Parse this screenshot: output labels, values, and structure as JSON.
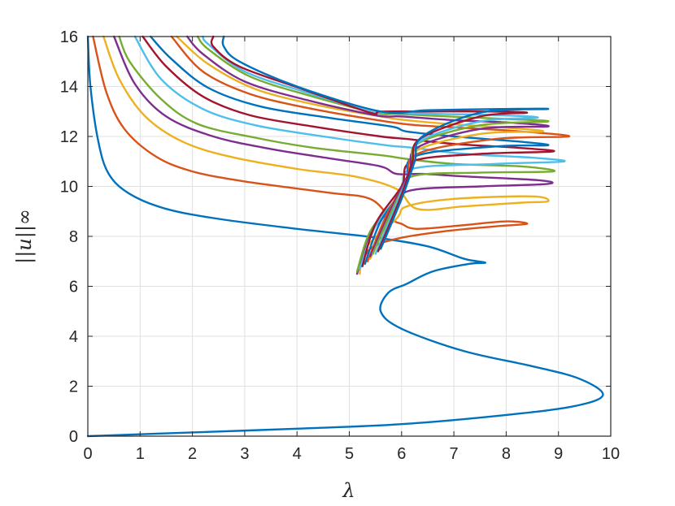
{
  "chart_data": {
    "type": "line",
    "title": "",
    "xlabel": "λ",
    "ylabel": "||u||∞",
    "xlim": [
      0,
      10
    ],
    "ylim": [
      0,
      16
    ],
    "xticks": [
      0,
      1,
      2,
      3,
      4,
      5,
      6,
      7,
      8,
      9,
      10
    ],
    "yticks": [
      0,
      2,
      4,
      6,
      8,
      10,
      12,
      14,
      16
    ],
    "grid": true,
    "legend": "none",
    "series": [
      {
        "color": "#0072BD",
        "points": [
          [
            0,
            0
          ],
          [
            2,
            0.15
          ],
          [
            4,
            0.3
          ],
          [
            6,
            0.48
          ],
          [
            8,
            0.85
          ],
          [
            9.3,
            1.2
          ],
          [
            9.85,
            1.65
          ],
          [
            9.4,
            2.3
          ],
          [
            8.5,
            2.8
          ],
          [
            7.2,
            3.4
          ],
          [
            6,
            4.3
          ],
          [
            5.6,
            5.0
          ],
          [
            5.75,
            5.75
          ],
          [
            6.1,
            6.1
          ],
          [
            6.6,
            6.6
          ],
          [
            7.3,
            6.9
          ],
          [
            7.6,
            6.95
          ],
          [
            7.2,
            7.1
          ],
          [
            6.5,
            7.6
          ],
          [
            5.5,
            7.95
          ],
          [
            4,
            8.3
          ],
          [
            2.5,
            8.7
          ],
          [
            1.5,
            9.1
          ],
          [
            0.8,
            9.7
          ],
          [
            0.4,
            10.5
          ],
          [
            0.2,
            11.8
          ],
          [
            0.05,
            14
          ],
          [
            0,
            16
          ]
        ]
      },
      {
        "color": "#D95319",
        "points": [
          [
            5.2,
            6.7
          ],
          [
            5.4,
            7.5
          ],
          [
            5.9,
            7.9
          ],
          [
            6.8,
            8.2
          ],
          [
            7.8,
            8.4
          ],
          [
            8.4,
            8.5
          ],
          [
            8.0,
            8.6
          ],
          [
            7.2,
            8.45
          ],
          [
            6.3,
            8.3
          ],
          [
            6.0,
            8.5
          ],
          [
            5.8,
            8.7
          ],
          [
            5.4,
            9.5
          ],
          [
            4.6,
            9.75
          ],
          [
            3,
            10.2
          ],
          [
            2,
            10.6
          ],
          [
            1.3,
            11.2
          ],
          [
            0.7,
            12.3
          ],
          [
            0.35,
            13.8
          ],
          [
            0.1,
            16
          ]
        ]
      },
      {
        "color": "#EDB120",
        "points": [
          [
            5.2,
            6.5
          ],
          [
            5.3,
            7.5
          ],
          [
            5.9,
            8.7
          ],
          [
            6.1,
            9.2
          ],
          [
            7,
            9.5
          ],
          [
            8.5,
            9.6
          ],
          [
            8.8,
            9.4
          ],
          [
            8.3,
            9.35
          ],
          [
            7.2,
            9.2
          ],
          [
            6.3,
            9.1
          ],
          [
            5.9,
            9.9
          ],
          [
            5.1,
            10.4
          ],
          [
            4,
            10.7
          ],
          [
            2.7,
            11.2
          ],
          [
            1.8,
            11.8
          ],
          [
            1.1,
            12.8
          ],
          [
            0.6,
            14.3
          ],
          [
            0.3,
            16
          ]
        ]
      },
      {
        "color": "#7E2F8E",
        "points": [
          [
            5.15,
            6.5
          ],
          [
            5.4,
            8.1
          ],
          [
            5.9,
            9.3
          ],
          [
            6.2,
            9.85
          ],
          [
            7.5,
            10
          ],
          [
            8.8,
            10.1
          ],
          [
            8.6,
            10.25
          ],
          [
            7.2,
            10.4
          ],
          [
            6.4,
            10.5
          ],
          [
            5.9,
            10.5
          ],
          [
            5.6,
            10.8
          ],
          [
            4.7,
            11.1
          ],
          [
            3.5,
            11.5
          ],
          [
            2.4,
            12
          ],
          [
            1.5,
            12.8
          ],
          [
            0.9,
            14.1
          ],
          [
            0.5,
            16
          ]
        ]
      },
      {
        "color": "#77AC30",
        "points": [
          [
            5.15,
            6.6
          ],
          [
            5.4,
            8.2
          ],
          [
            5.9,
            9.5
          ],
          [
            6.2,
            10.4
          ],
          [
            7.5,
            10.55
          ],
          [
            8.9,
            10.6
          ],
          [
            8.3,
            10.8
          ],
          [
            7,
            10.9
          ],
          [
            6.1,
            11.1
          ],
          [
            5.6,
            11.25
          ],
          [
            4.3,
            11.55
          ],
          [
            3.2,
            11.95
          ],
          [
            2.1,
            12.5
          ],
          [
            1.4,
            13.5
          ],
          [
            0.8,
            15
          ],
          [
            0.6,
            16
          ]
        ]
      },
      {
        "color": "#4DBEEE",
        "points": [
          [
            5.2,
            6.7
          ],
          [
            5.5,
            8.4
          ],
          [
            6.0,
            9.8
          ],
          [
            6.2,
            10.7
          ],
          [
            7.8,
            10.9
          ],
          [
            9.1,
            11
          ],
          [
            8.5,
            11.15
          ],
          [
            7.2,
            11.3
          ],
          [
            6.2,
            11.55
          ],
          [
            5.7,
            11.65
          ],
          [
            4.5,
            12.0
          ],
          [
            3.2,
            12.45
          ],
          [
            2.2,
            13.1
          ],
          [
            1.4,
            14.3
          ],
          [
            0.9,
            16
          ]
        ]
      },
      {
        "color": "#A2142F",
        "points": [
          [
            5.25,
            6.8
          ],
          [
            5.5,
            8.5
          ],
          [
            6.0,
            10.0
          ],
          [
            6.2,
            11.0
          ],
          [
            7.5,
            11.3
          ],
          [
            8.9,
            11.4
          ],
          [
            8.2,
            11.55
          ],
          [
            7,
            11.7
          ],
          [
            6.1,
            11.9
          ],
          [
            5.6,
            12.0
          ],
          [
            4.3,
            12.4
          ],
          [
            3.1,
            12.85
          ],
          [
            2.2,
            13.6
          ],
          [
            1.5,
            14.8
          ],
          [
            1.05,
            16
          ]
        ]
      },
      {
        "color": "#0072BD",
        "points": [
          [
            5.3,
            6.9
          ],
          [
            5.6,
            8.6
          ],
          [
            6.1,
            10.1
          ],
          [
            6.25,
            11.2
          ],
          [
            7.8,
            11.6
          ],
          [
            8.8,
            11.65
          ],
          [
            8.2,
            11.8
          ],
          [
            7,
            12.0
          ],
          [
            6.1,
            12.2
          ],
          [
            5.8,
            12.4
          ],
          [
            4.6,
            12.75
          ],
          [
            3.3,
            13.2
          ],
          [
            2.3,
            13.95
          ],
          [
            1.6,
            15.1
          ],
          [
            1.2,
            16
          ]
        ]
      },
      {
        "color": "#D95319",
        "points": [
          [
            5.35,
            7.0
          ],
          [
            5.7,
            8.8
          ],
          [
            6.1,
            10.3
          ],
          [
            6.3,
            11.3
          ],
          [
            7.8,
            11.9
          ],
          [
            9.2,
            12.0
          ],
          [
            8.3,
            12.2
          ],
          [
            7.1,
            12.35
          ],
          [
            6.3,
            12.45
          ],
          [
            5.7,
            12.6
          ],
          [
            4.3,
            13.1
          ],
          [
            3.1,
            13.7
          ],
          [
            2.2,
            14.6
          ],
          [
            1.6,
            16
          ]
        ]
      },
      {
        "color": "#EDB120",
        "points": [
          [
            5.4,
            7.1
          ],
          [
            5.8,
            9.0
          ],
          [
            6.15,
            10.5
          ],
          [
            6.3,
            11.45
          ],
          [
            7.5,
            12.1
          ],
          [
            8.7,
            12.2
          ],
          [
            8,
            12.35
          ],
          [
            6.9,
            12.5
          ],
          [
            6.1,
            12.65
          ],
          [
            5.6,
            12.8
          ],
          [
            4.4,
            13.25
          ],
          [
            3.2,
            13.9
          ],
          [
            2.3,
            14.9
          ],
          [
            1.7,
            16
          ]
        ]
      },
      {
        "color": "#7E2F8E",
        "points": [
          [
            5.4,
            7.2
          ],
          [
            5.8,
            9.1
          ],
          [
            6.15,
            10.6
          ],
          [
            6.3,
            11.55
          ],
          [
            7.5,
            12.3
          ],
          [
            8.8,
            12.4
          ],
          [
            8.1,
            12.55
          ],
          [
            7,
            12.65
          ],
          [
            6,
            12.8
          ],
          [
            5.5,
            12.85
          ],
          [
            4.2,
            13.45
          ],
          [
            3.0,
            14.2
          ],
          [
            2.2,
            15.3
          ],
          [
            1.9,
            16
          ]
        ]
      },
      {
        "color": "#77AC30",
        "points": [
          [
            5.45,
            7.3
          ],
          [
            5.85,
            9.2
          ],
          [
            6.2,
            10.7
          ],
          [
            6.3,
            11.7
          ],
          [
            7.5,
            12.45
          ],
          [
            8.8,
            12.6
          ],
          [
            8,
            12.7
          ],
          [
            6.9,
            12.8
          ],
          [
            5.9,
            12.9
          ],
          [
            5.5,
            12.95
          ],
          [
            4.3,
            13.6
          ],
          [
            3.1,
            14.4
          ],
          [
            2.3,
            15.5
          ],
          [
            2.1,
            16
          ]
        ]
      },
      {
        "color": "#4DBEEE",
        "points": [
          [
            5.5,
            7.3
          ],
          [
            5.9,
            9.3
          ],
          [
            6.2,
            10.8
          ],
          [
            6.35,
            11.8
          ],
          [
            7.5,
            12.6
          ],
          [
            8.6,
            12.75
          ],
          [
            7.9,
            12.85
          ],
          [
            6.7,
            12.9
          ],
          [
            5.7,
            12.95
          ],
          [
            5.4,
            13.0
          ],
          [
            4.2,
            13.75
          ],
          [
            3.0,
            14.6
          ],
          [
            2.3,
            15.7
          ],
          [
            2.2,
            16
          ]
        ]
      },
      {
        "color": "#A2142F",
        "points": [
          [
            5.55,
            7.4
          ],
          [
            5.95,
            9.4
          ],
          [
            6.2,
            10.9
          ],
          [
            6.35,
            11.9
          ],
          [
            7.5,
            12.8
          ],
          [
            8.4,
            12.95
          ],
          [
            7.6,
            13.0
          ],
          [
            6.5,
            13.0
          ],
          [
            5.6,
            13.0
          ],
          [
            5.4,
            12.95
          ],
          [
            4.1,
            13.9
          ],
          [
            2.9,
            14.8
          ],
          [
            2.4,
            15.6
          ],
          [
            2.4,
            16
          ]
        ]
      },
      {
        "color": "#0072BD",
        "points": [
          [
            5.6,
            7.5
          ],
          [
            6.0,
            9.5
          ],
          [
            6.25,
            11.0
          ],
          [
            6.4,
            12.0
          ],
          [
            7.5,
            12.95
          ],
          [
            8.8,
            13.1
          ],
          [
            7.9,
            13.1
          ],
          [
            6.5,
            13.05
          ],
          [
            5.6,
            13.0
          ],
          [
            4.0,
            14.0
          ],
          [
            2.9,
            15.0
          ],
          [
            2.6,
            15.6
          ],
          [
            2.6,
            16
          ]
        ]
      }
    ]
  }
}
